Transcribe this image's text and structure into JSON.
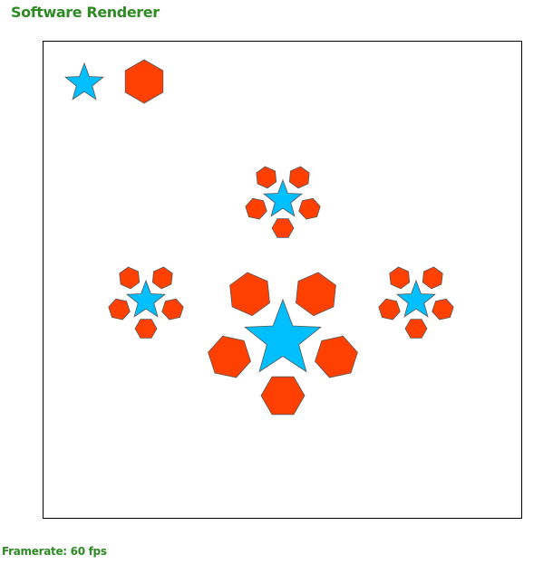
{
  "app": {
    "title": "Software Renderer"
  },
  "status": {
    "framerate_text": "Framerate: 60 fps"
  },
  "colors": {
    "accent_text": "#2e8b24",
    "star_fill": "#00bfff",
    "hexagon_fill": "#ff4000",
    "shape_stroke": "#555555",
    "canvas_border": "#000000",
    "canvas_background": "#ffffff"
  }
}
